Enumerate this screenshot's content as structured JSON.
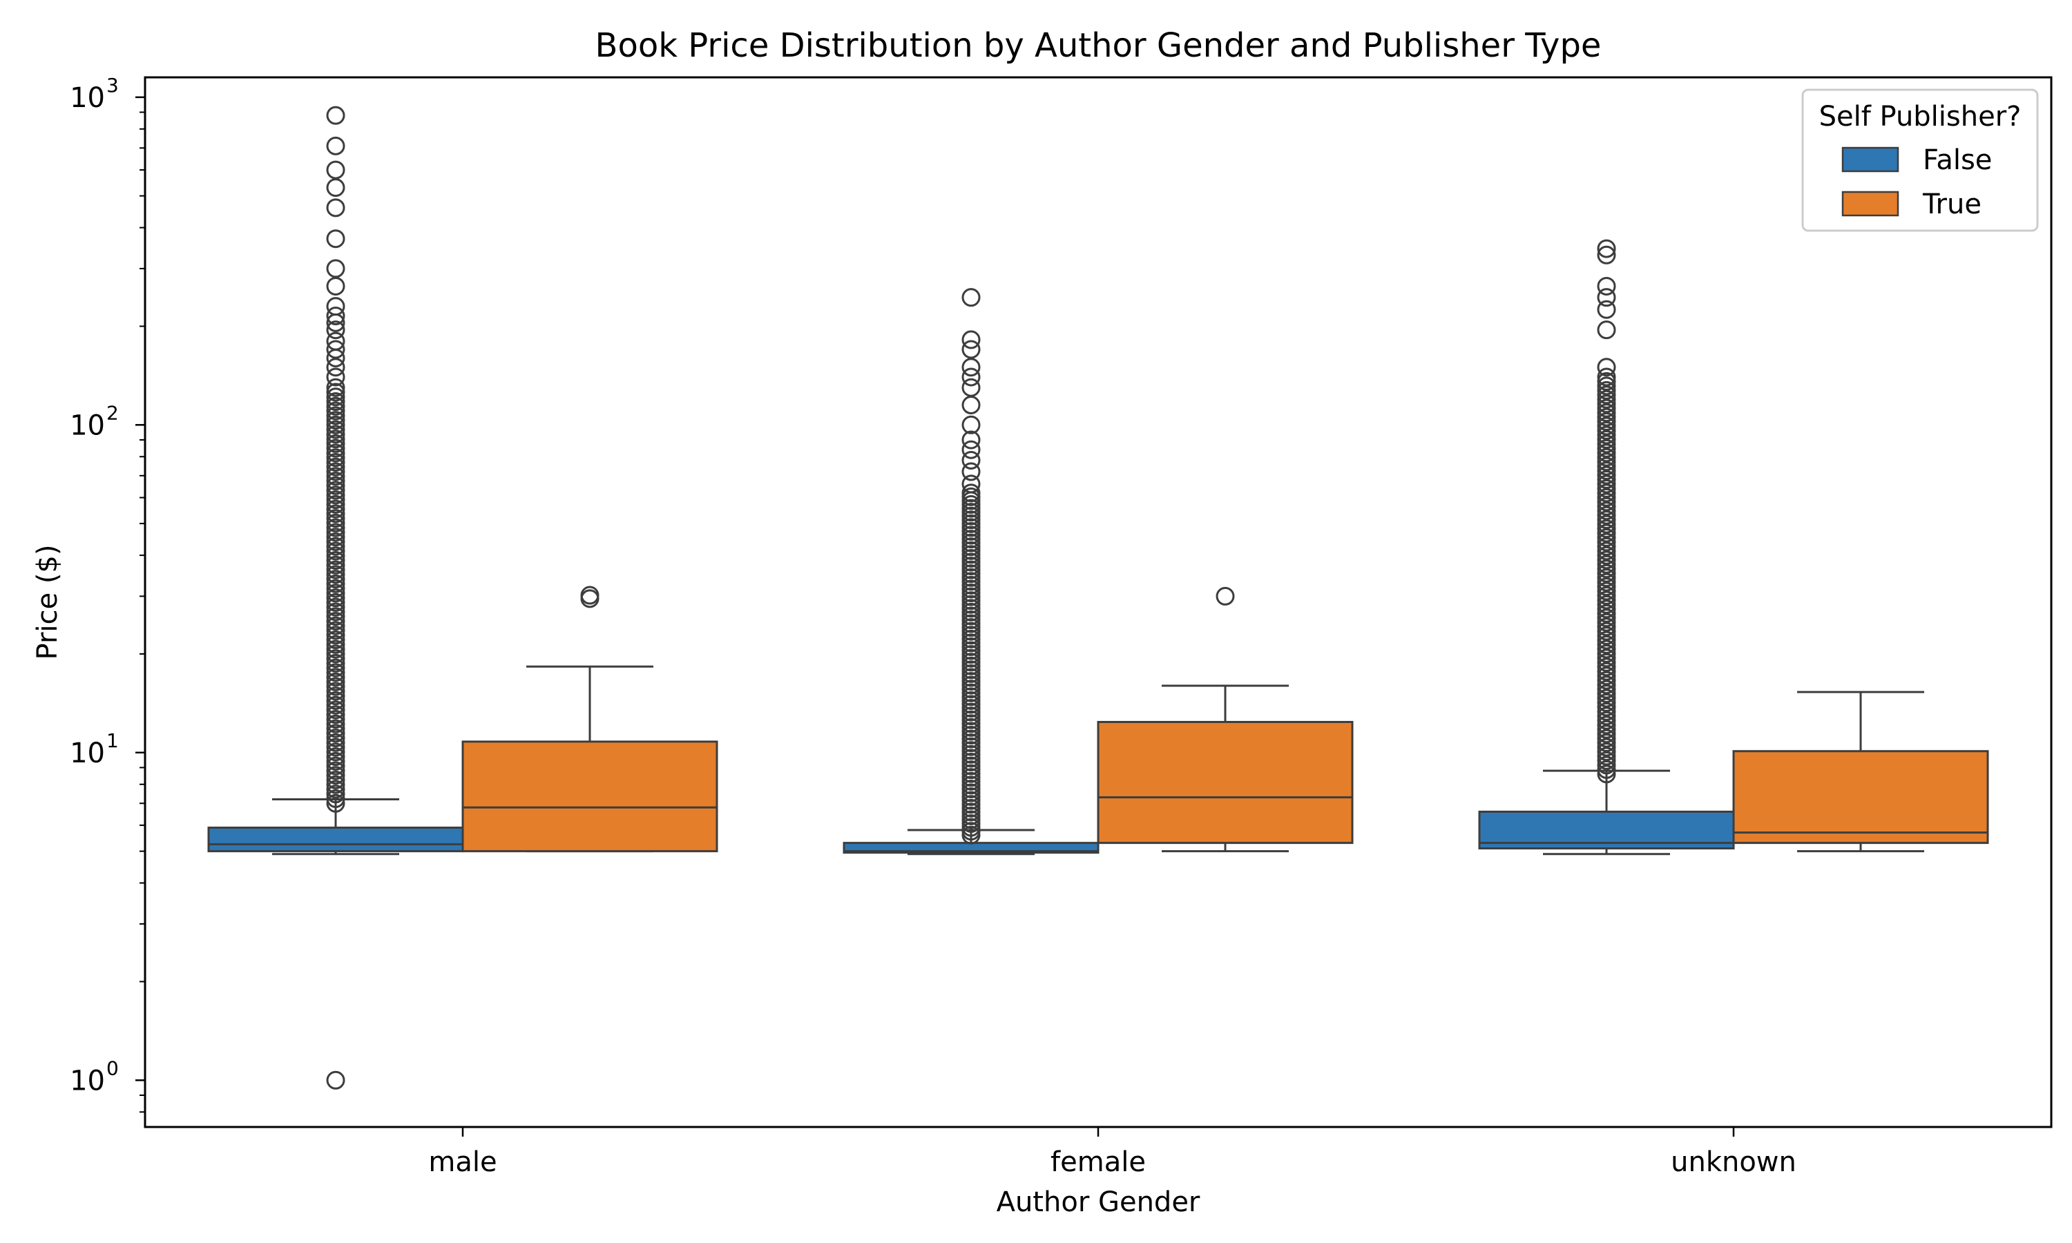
{
  "chart_data": {
    "type": "box",
    "title": "Book Price Distribution by Author Gender and Publisher Type",
    "xlabel": "Author Gender",
    "ylabel": "Price ($)",
    "yscale": "log",
    "ylim": [
      0.72,
      1150
    ],
    "categories": [
      "male",
      "female",
      "unknown"
    ],
    "y_ticks": [
      {
        "value": 1,
        "base": "10",
        "exp": "0"
      },
      {
        "value": 10,
        "base": "10",
        "exp": "1"
      },
      {
        "value": 100,
        "base": "10",
        "exp": "2"
      },
      {
        "value": 1000,
        "base": "10",
        "exp": "3"
      }
    ],
    "legend": {
      "title": "Self Publisher?",
      "position": "top-right"
    },
    "series": [
      {
        "name": "False",
        "color": "#2f77b3",
        "boxes": [
          {
            "whisker_low": 4.9,
            "q1": 5.0,
            "median": 5.25,
            "q3": 5.9,
            "whisker_high": 7.2,
            "outliers_dense": [
              7.0,
              130
            ],
            "outliers": [
              1.0,
              140,
              150,
              160,
              170,
              180,
              195,
              205,
              215,
              230,
              265,
              300,
              370,
              460,
              530,
              600,
              710,
              880
            ]
          },
          {
            "whisker_low": 4.9,
            "q1": 4.95,
            "median": 5.0,
            "q3": 5.3,
            "whisker_high": 5.8,
            "outliers_dense": [
              5.6,
              62
            ],
            "outliers": [
              66,
              72,
              78,
              84,
              90,
              100,
              115,
              130,
              140,
              150,
              170,
              182,
              245
            ]
          },
          {
            "whisker_low": 4.9,
            "q1": 5.1,
            "median": 5.3,
            "q3": 6.6,
            "whisker_high": 8.8,
            "outliers_dense": [
              8.6,
              140
            ],
            "outliers": [
              150,
              195,
              225,
              245,
              265,
              330,
              345
            ]
          }
        ]
      },
      {
        "name": "True",
        "color": "#e57e2a",
        "boxes": [
          {
            "whisker_low": 5.0,
            "q1": 5.0,
            "median": 6.8,
            "q3": 10.8,
            "whisker_high": 18.3,
            "outliers_dense": null,
            "outliers": [
              29.5,
              30.2
            ]
          },
          {
            "whisker_low": 5.0,
            "q1": 5.3,
            "median": 7.3,
            "q3": 12.4,
            "whisker_high": 16.0,
            "outliers_dense": null,
            "outliers": [
              30.0
            ]
          },
          {
            "whisker_low": 5.0,
            "q1": 5.3,
            "median": 5.7,
            "q3": 10.1,
            "whisker_high": 15.3,
            "outliers_dense": null,
            "outliers": []
          }
        ]
      }
    ]
  }
}
